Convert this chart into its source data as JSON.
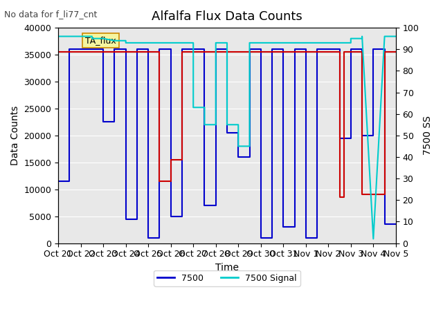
{
  "title": "Alfalfa Flux Data Counts",
  "subtitle": "No data for f_li77_cnt",
  "xlabel": "Time",
  "ylabel_left": "Data Counts",
  "ylabel_right": "7500 SS",
  "legend_box_label": "TA_flux",
  "ylim_left": [
    0,
    40000
  ],
  "ylim_right": [
    0,
    100
  ],
  "background_color": "#e8e8e8",
  "xtick_labels": [
    "Oct 21",
    "Oct 22",
    "Oct 23",
    "Oct 24",
    "Oct 25",
    "Oct 26",
    "Oct 27",
    "Oct 28",
    "Oct 29",
    "Oct 30",
    "Oct 31",
    "Nov 1",
    "Nov 2",
    "Nov 3",
    "Nov 4",
    "Nov 5"
  ],
  "sonic_color": "#cc0000",
  "s7500_color": "#0000cc",
  "signal_color": "#00cccc",
  "sonic_data_x": [
    0,
    4.5,
    4.5,
    5.0,
    5.0,
    5.5,
    5.5,
    12.5,
    12.5,
    12.7,
    12.7,
    13.0,
    13.0,
    13.5,
    13.5,
    14.5,
    14.5,
    15.0
  ],
  "sonic_data_y": [
    35500,
    35500,
    11500,
    11500,
    15500,
    15500,
    35500,
    35500,
    8500,
    8500,
    35500,
    35500,
    35500,
    35500,
    9000,
    9000,
    35500,
    35500
  ],
  "s7500_data_x": [
    0,
    0.5,
    0.5,
    2.0,
    2.0,
    2.5,
    2.5,
    3.0,
    3.0,
    3.5,
    3.5,
    4.0,
    4.0,
    4.5,
    4.5,
    5.0,
    5.0,
    5.5,
    5.5,
    6.0,
    6.0,
    6.5,
    6.5,
    7.0,
    7.0,
    7.5,
    7.5,
    8.0,
    8.0,
    8.5,
    8.5,
    9.0,
    9.0,
    9.5,
    9.5,
    10.0,
    10.0,
    10.5,
    10.5,
    11.0,
    11.0,
    11.5,
    11.5,
    12.0,
    12.0,
    12.5,
    12.5,
    13.0,
    13.0,
    13.5,
    13.5,
    14.0,
    14.0,
    14.5,
    14.5,
    15.0
  ],
  "s7500_data_y": [
    11500,
    11500,
    36000,
    36000,
    22500,
    22500,
    36000,
    36000,
    4500,
    4500,
    36000,
    36000,
    1000,
    1000,
    36000,
    36000,
    5000,
    5000,
    36000,
    36000,
    36000,
    36000,
    7000,
    7000,
    36000,
    36000,
    20500,
    20500,
    16000,
    16000,
    36000,
    36000,
    1000,
    1000,
    36000,
    36000,
    3000,
    3000,
    36000,
    36000,
    1000,
    1000,
    36000,
    36000,
    36000,
    36000,
    19500,
    19500,
    36000,
    36000,
    20000,
    20000,
    36000,
    36000,
    3500,
    3500
  ],
  "signal_data_x": [
    0,
    0.5,
    0.5,
    1.0,
    1.0,
    1.5,
    1.5,
    2.0,
    2.0,
    2.5,
    2.5,
    3.0,
    3.0,
    3.5,
    3.5,
    4.0,
    4.0,
    4.5,
    4.5,
    5.0,
    5.0,
    5.5,
    5.5,
    6.0,
    6.0,
    6.5,
    6.5,
    7.0,
    7.0,
    7.5,
    7.5,
    8.0,
    8.0,
    8.5,
    8.5,
    9.0,
    9.0,
    9.5,
    9.5,
    10.0,
    10.0,
    10.5,
    10.5,
    11.0,
    11.0,
    11.5,
    11.5,
    12.0,
    12.0,
    12.5,
    12.5,
    13.0,
    13.0,
    13.5,
    13.5,
    14.0,
    14.0,
    14.5,
    14.5,
    15.0
  ],
  "signal_data_y": [
    96,
    96,
    96,
    96,
    96,
    96,
    95,
    95,
    95,
    94,
    94,
    94,
    93,
    93,
    93,
    93,
    93,
    93,
    93,
    93,
    93,
    93,
    93,
    93,
    63,
    63,
    55,
    55,
    93,
    93,
    55,
    55,
    45,
    45,
    93,
    93,
    93,
    93,
    93,
    93,
    93,
    93,
    93,
    93,
    93,
    93,
    93,
    93,
    93,
    93,
    93,
    93,
    95,
    95,
    96,
    2,
    2,
    96,
    96,
    96
  ]
}
